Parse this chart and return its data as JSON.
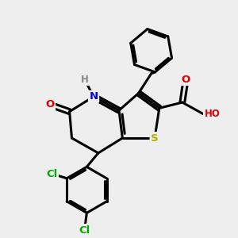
{
  "background_color": "#eeeeee",
  "bond_color": "#000000",
  "bond_width": 2.2,
  "atom_colors": {
    "N": "#0000cc",
    "O": "#dd0000",
    "S": "#bbaa00",
    "Cl": "#00aa00",
    "H": "#888888"
  },
  "figsize": [
    3.0,
    3.0
  ],
  "dpi": 100
}
